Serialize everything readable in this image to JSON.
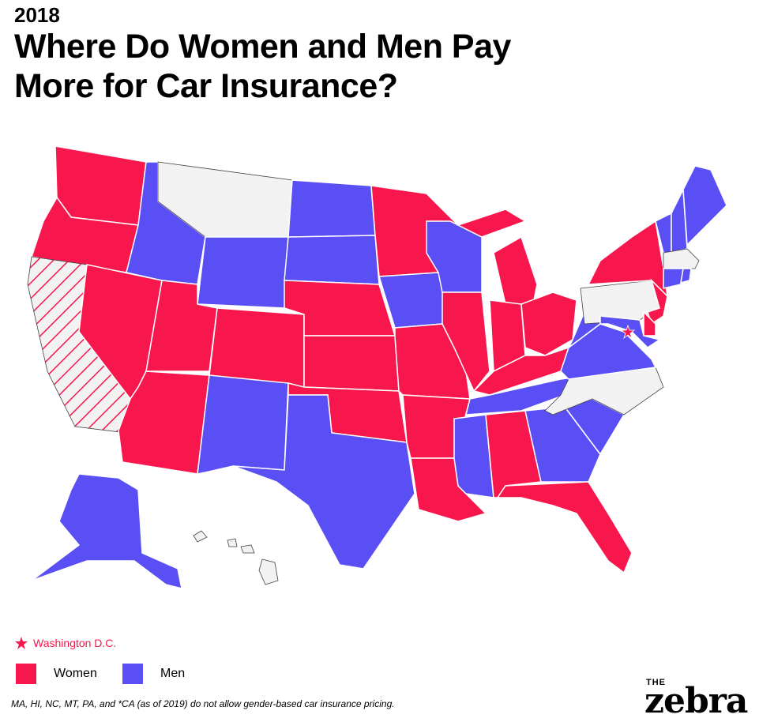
{
  "header": {
    "year": "2018",
    "title": "Where Do Women and Men Pay More for Car Insurance?"
  },
  "map": {
    "marker_label": "Washington D.C.",
    "legend": [
      {
        "label": "Women",
        "color": "#f8174d",
        "states": [
          "WA",
          "OR",
          "NV",
          "UT",
          "AZ",
          "CO",
          "NE",
          "KS",
          "OK",
          "MN",
          "MO",
          "AR",
          "LA",
          "IL",
          "MI",
          "IN",
          "OH",
          "KY",
          "AL",
          "FL",
          "NY",
          "NJ",
          "DE"
        ]
      },
      {
        "label": "Men",
        "color": "#5a4ff5",
        "states": [
          "ID",
          "WY",
          "ND",
          "SD",
          "NM",
          "TX",
          "IA",
          "WI",
          "TN",
          "MS",
          "GA",
          "SC",
          "VA",
          "WV",
          "MD",
          "VT",
          "NH",
          "ME",
          "CT",
          "RI",
          "AK"
        ]
      }
    ]
  },
  "footnote": "MA, HI, NC, MT, PA, and *CA (as of 2019) do not allow gender-based car insurance pricing.",
  "logo": {
    "top": "THE",
    "word": "zebra"
  }
}
